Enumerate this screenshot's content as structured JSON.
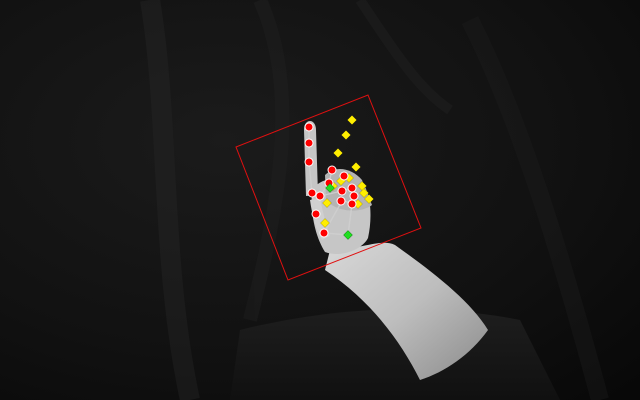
{
  "image": {
    "description_type": "grayscale infrared photo of a raised hand with pose keypoint overlay"
  },
  "overlay": {
    "bounding_box_color": "#e01010",
    "skeleton_color": "#cfcfcf",
    "gt_keypoint_color": "#ff0000",
    "pred_keypoint_color": "#ffee00",
    "anchor_keypoint_color": "#22dd22"
  }
}
